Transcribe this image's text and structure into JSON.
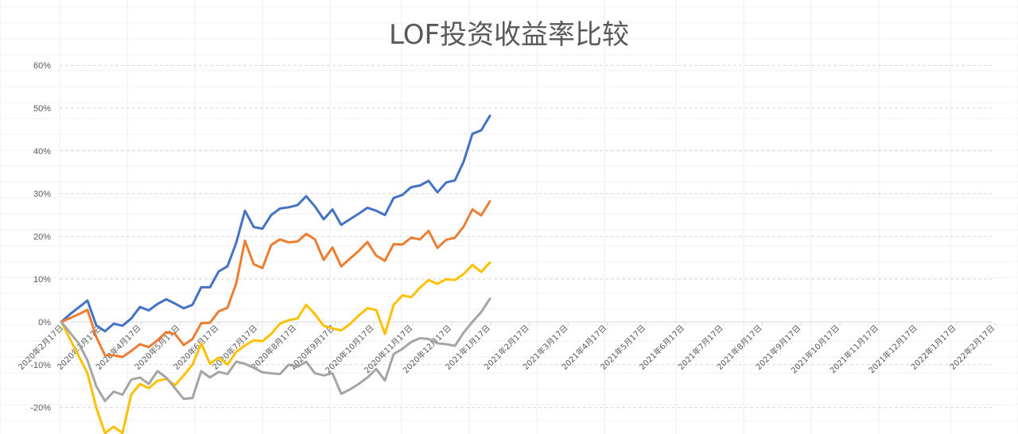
{
  "chart_data": {
    "type": "line",
    "title": "LOF投资收益率比较",
    "xlabel": "",
    "ylabel": "",
    "ylim": [
      -0.2,
      0.6
    ],
    "y_ticks": [
      "60%",
      "50%",
      "40%",
      "30%",
      "20%",
      "10%",
      "0%",
      "-10%",
      "-20%"
    ],
    "y_tick_values": [
      0.6,
      0.5,
      0.4,
      0.3,
      0.2,
      0.1,
      0.0,
      -0.1,
      -0.2
    ],
    "grid": "horizontal dashed",
    "legend": "none",
    "x_ticks": [
      "2020年2月17日",
      "2020年3月17日",
      "2020年4月17日",
      "2020年5月17日",
      "2020年6月17日",
      "2020年7月17日",
      "2020年8月17日",
      "2020年9月17日",
      "2020年10月17日",
      "2020年11月17日",
      "2020年12月17日",
      "2021年1月17日",
      "2021年2月17日",
      "2021年3月17日",
      "2021年4月17日",
      "2021年5月17日",
      "2021年6月17日",
      "2021年7月17日",
      "2021年8月17日",
      "2021年9月17日",
      "2021年10月17日",
      "2021年11月17日",
      "2021年12月17日",
      "2022年1月17日",
      "2022年2月17日"
    ],
    "series": [
      {
        "color": "#4472c4",
        "values": [
          0,
          0.018,
          0.034,
          0.05,
          -0.008,
          -0.022,
          -0.004,
          -0.009,
          0.008,
          0.035,
          0.027,
          0.042,
          0.053,
          0.043,
          0.032,
          0.04,
          0.081,
          0.081,
          0.118,
          0.13,
          0.185,
          0.26,
          0.222,
          0.218,
          0.25,
          0.265,
          0.268,
          0.273,
          0.294,
          0.27,
          0.24,
          0.263,
          0.227,
          0.24,
          0.253,
          0.267,
          0.26,
          0.25,
          0.29,
          0.297,
          0.315,
          0.319,
          0.33,
          0.303,
          0.326,
          0.331,
          0.375,
          0.44,
          0.448,
          0.482
        ]
      },
      {
        "color": "#ed7d31",
        "values": [
          0,
          0.009,
          0.018,
          0.028,
          -0.035,
          -0.078,
          -0.078,
          -0.082,
          -0.068,
          -0.052,
          -0.059,
          -0.043,
          -0.024,
          -0.028,
          -0.054,
          -0.04,
          -0.003,
          -0.002,
          0.025,
          0.033,
          0.09,
          0.19,
          0.135,
          0.126,
          0.18,
          0.193,
          0.186,
          0.188,
          0.206,
          0.193,
          0.145,
          0.174,
          0.13,
          0.148,
          0.166,
          0.187,
          0.155,
          0.143,
          0.182,
          0.181,
          0.197,
          0.193,
          0.213,
          0.173,
          0.192,
          0.197,
          0.223,
          0.263,
          0.249,
          0.282
        ]
      },
      {
        "color": "#ffc000",
        "values": [
          0,
          -0.04,
          -0.08,
          -0.12,
          -0.2,
          -0.26,
          -0.245,
          -0.26,
          -0.17,
          -0.145,
          -0.155,
          -0.138,
          -0.133,
          -0.148,
          -0.125,
          -0.1,
          -0.05,
          -0.098,
          -0.083,
          -0.1,
          -0.07,
          -0.055,
          -0.043,
          -0.045,
          -0.028,
          -0.004,
          0.004,
          0.008,
          0.04,
          0.018,
          -0.009,
          -0.015,
          -0.02,
          -0.005,
          0.015,
          0.032,
          0.028,
          -0.028,
          0.04,
          0.062,
          0.058,
          0.08,
          0.098,
          0.089,
          0.1,
          0.098,
          0.112,
          0.133,
          0.117,
          0.139
        ]
      },
      {
        "color": "#a5a5a5",
        "values": [
          0,
          -0.025,
          -0.05,
          -0.09,
          -0.15,
          -0.185,
          -0.163,
          -0.17,
          -0.135,
          -0.13,
          -0.145,
          -0.115,
          -0.13,
          -0.155,
          -0.18,
          -0.178,
          -0.115,
          -0.13,
          -0.117,
          -0.122,
          -0.093,
          -0.098,
          -0.107,
          -0.118,
          -0.12,
          -0.122,
          -0.1,
          -0.105,
          -0.093,
          -0.12,
          -0.125,
          -0.12,
          -0.168,
          -0.158,
          -0.145,
          -0.13,
          -0.11,
          -0.137,
          -0.075,
          -0.063,
          -0.047,
          -0.038,
          -0.04,
          -0.05,
          -0.052,
          -0.056,
          -0.025,
          0,
          0.023,
          0.054
        ]
      }
    ]
  }
}
